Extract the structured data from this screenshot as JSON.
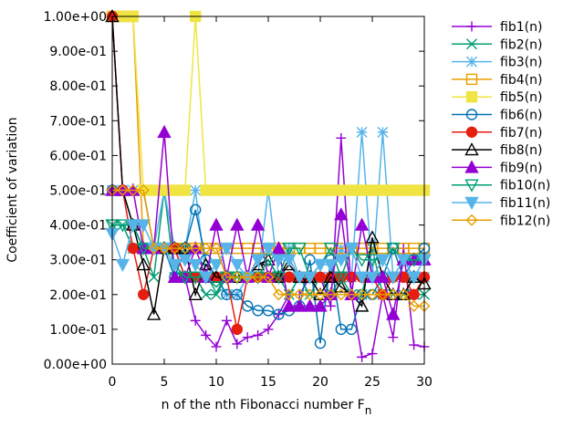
{
  "chart_data": {
    "type": "line",
    "title": "",
    "xlabel": "n of the nth Fibonacci number F",
    "xlabel_subscript": "n",
    "ylabel": "Coefficient of variation",
    "xlim": [
      0,
      30
    ],
    "ylim": [
      0,
      1
    ],
    "x_ticks": [
      0,
      5,
      10,
      15,
      20,
      25,
      30
    ],
    "x_tick_labels": [
      "0",
      "5",
      "10",
      "15",
      "20",
      "25",
      "30"
    ],
    "y_ticks": [
      0,
      0.1,
      0.2,
      0.3,
      0.4,
      0.5,
      0.6,
      0.7,
      0.8,
      0.9,
      1.0
    ],
    "y_tick_labels": [
      "0.00e+00",
      "1.00e-01",
      "2.00e-01",
      "3.00e-01",
      "4.00e-01",
      "5.00e-01",
      "6.00e-01",
      "7.00e-01",
      "8.00e-01",
      "9.00e-01",
      "1.00e+00"
    ],
    "grid": false,
    "legend_position": "outside-top-right",
    "x": [
      0,
      1,
      2,
      3,
      4,
      5,
      6,
      7,
      8,
      9,
      10,
      11,
      12,
      13,
      14,
      15,
      16,
      17,
      18,
      19,
      20,
      21,
      22,
      23,
      24,
      25,
      26,
      27,
      28,
      29,
      30
    ],
    "series": [
      {
        "name": "fib1(n)",
        "color": "#9400d3",
        "marker": "plus",
        "filled": false,
        "values": [
          0.5,
          0.5,
          0.5,
          0.5,
          0.333,
          0.333,
          0.333,
          0.25,
          0.125,
          0.083,
          0.05,
          0.125,
          0.058,
          0.077,
          0.083,
          0.1,
          0.143,
          0.2,
          0.2,
          0.25,
          0.25,
          0.167,
          0.65,
          0.2,
          0.02,
          0.03,
          0.2,
          0.077,
          0.333,
          0.055,
          0.05
        ]
      },
      {
        "name": "fib2(n)",
        "color": "#009e73",
        "marker": "x",
        "filled": false,
        "values": [
          0.4,
          0.4,
          0.333,
          0.333,
          0.25,
          0.5,
          0.25,
          0.25,
          0.25,
          0.2,
          0.2,
          0.25,
          0.25,
          0.25,
          0.25,
          0.25,
          0.25,
          0.2,
          0.25,
          0.2,
          0.25,
          0.2,
          0.25,
          0.2,
          0.2,
          0.333,
          0.2,
          0.2,
          0.2,
          0.2,
          0.2
        ]
      },
      {
        "name": "fib3(n)",
        "color": "#56b4e9",
        "marker": "star",
        "filled": false,
        "values": [
          0.5,
          0.5,
          0.5,
          0.5,
          0.333,
          0.5,
          0.333,
          0.333,
          0.5,
          0.25,
          0.25,
          0.2,
          0.2,
          0.25,
          0.25,
          0.5,
          0.25,
          0.333,
          0.25,
          0.25,
          0.25,
          0.25,
          0.333,
          0.25,
          0.667,
          0.25,
          0.667,
          0.25,
          0.25,
          0.25,
          0.25
        ]
      },
      {
        "name": "fib4(n)",
        "color": "#e69f00",
        "marker": "square",
        "filled": false,
        "values": [
          1.0,
          1.0,
          1.0,
          0.333,
          0.333,
          0.333,
          0.333,
          0.333,
          0.333,
          0.333,
          0.333,
          0.333,
          0.333,
          0.333,
          0.333,
          0.333,
          0.333,
          0.333,
          0.333,
          0.333,
          0.333,
          0.333,
          0.333,
          0.333,
          0.333,
          0.333,
          0.333,
          0.333,
          0.333,
          0.333,
          0.333
        ]
      },
      {
        "name": "fib5(n)",
        "color": "#f0e442",
        "marker": "square",
        "filled": true,
        "values": [
          1.0,
          1.0,
          1.0,
          0.5,
          0.5,
          0.5,
          0.5,
          0.5,
          1.0,
          0.5,
          0.5,
          0.5,
          0.5,
          0.5,
          0.5,
          0.5,
          0.5,
          0.5,
          0.5,
          0.5,
          0.5,
          0.5,
          0.5,
          0.5,
          0.5,
          0.5,
          0.5,
          0.5,
          0.5,
          0.5,
          0.5
        ]
      },
      {
        "name": "fib6(n)",
        "color": "#0072b2",
        "marker": "circle",
        "filled": false,
        "values": [
          0.5,
          0.5,
          0.4,
          0.333,
          0.333,
          0.333,
          0.25,
          0.333,
          0.444,
          0.3,
          0.25,
          0.2,
          0.2,
          0.167,
          0.154,
          0.154,
          0.143,
          0.154,
          0.167,
          0.3,
          0.06,
          0.3,
          0.1,
          0.1,
          0.2,
          0.2,
          0.25,
          0.333,
          0.25,
          0.3,
          0.333
        ]
      },
      {
        "name": "fib7(n)",
        "color": "#e51e10",
        "marker": "circle",
        "filled": true,
        "values": [
          1.0,
          0.5,
          0.333,
          0.2,
          0.333,
          0.333,
          0.333,
          0.25,
          0.25,
          0.25,
          0.25,
          0.25,
          0.1,
          0.25,
          0.25,
          0.25,
          0.25,
          0.25,
          0.25,
          0.25,
          0.25,
          0.25,
          0.25,
          0.25,
          0.25,
          0.25,
          0.2,
          0.25,
          0.25,
          0.2,
          0.25
        ]
      },
      {
        "name": "fib8(n)",
        "color": "#000000",
        "marker": "triangle",
        "filled": false,
        "values": [
          1.0,
          0.5,
          0.4,
          0.286,
          0.143,
          0.333,
          0.333,
          0.333,
          0.2,
          0.286,
          0.25,
          0.25,
          0.25,
          0.25,
          0.286,
          0.3,
          0.25,
          0.286,
          0.25,
          0.25,
          0.2,
          0.25,
          0.222,
          0.2,
          0.167,
          0.364,
          0.25,
          0.2,
          0.2,
          0.25,
          0.231
        ]
      },
      {
        "name": "fib9(n)",
        "color": "#9400d3",
        "marker": "triangle",
        "filled": true,
        "values": [
          0.5,
          0.5,
          0.5,
          0.333,
          0.333,
          0.667,
          0.25,
          0.25,
          0.333,
          0.25,
          0.4,
          0.25,
          0.4,
          0.25,
          0.4,
          0.25,
          0.333,
          0.167,
          0.167,
          0.167,
          0.167,
          0.2,
          0.43,
          0.2,
          0.4,
          0.25,
          0.25,
          0.143,
          0.3,
          0.3,
          0.3
        ]
      },
      {
        "name": "fib10(n)",
        "color": "#009e73",
        "marker": "triangle-down",
        "filled": false,
        "values": [
          0.4,
          0.4,
          0.4,
          0.333,
          0.333,
          0.333,
          0.286,
          0.25,
          0.25,
          0.25,
          0.222,
          0.25,
          0.25,
          0.25,
          0.25,
          0.3,
          0.25,
          0.333,
          0.333,
          0.25,
          0.286,
          0.333,
          0.25,
          0.333,
          0.3,
          0.3,
          0.3,
          0.333,
          0.3,
          0.3,
          0.3
        ]
      },
      {
        "name": "fib11(n)",
        "color": "#56b4e9",
        "marker": "triangle-down",
        "filled": true,
        "values": [
          0.375,
          0.286,
          0.4,
          0.4,
          0.333,
          0.333,
          0.286,
          0.3,
          0.286,
          0.25,
          0.286,
          0.333,
          0.286,
          0.25,
          0.3,
          0.333,
          0.3,
          0.3,
          0.25,
          0.25,
          0.286,
          0.286,
          0.3,
          0.333,
          0.25,
          0.25,
          0.3,
          0.25,
          0.3,
          0.25,
          0.3
        ]
      },
      {
        "name": "fib12(n)",
        "color": "#e69f00",
        "marker": "diamond",
        "filled": false,
        "values": [
          0.5,
          0.5,
          0.5,
          0.5,
          0.333,
          0.333,
          0.333,
          0.333,
          0.333,
          0.333,
          0.333,
          0.25,
          0.25,
          0.25,
          0.25,
          0.25,
          0.2,
          0.2,
          0.2,
          0.2,
          0.2,
          0.2,
          0.2,
          0.2,
          0.2,
          0.2,
          0.2,
          0.2,
          0.2,
          0.167,
          0.167
        ]
      }
    ]
  }
}
